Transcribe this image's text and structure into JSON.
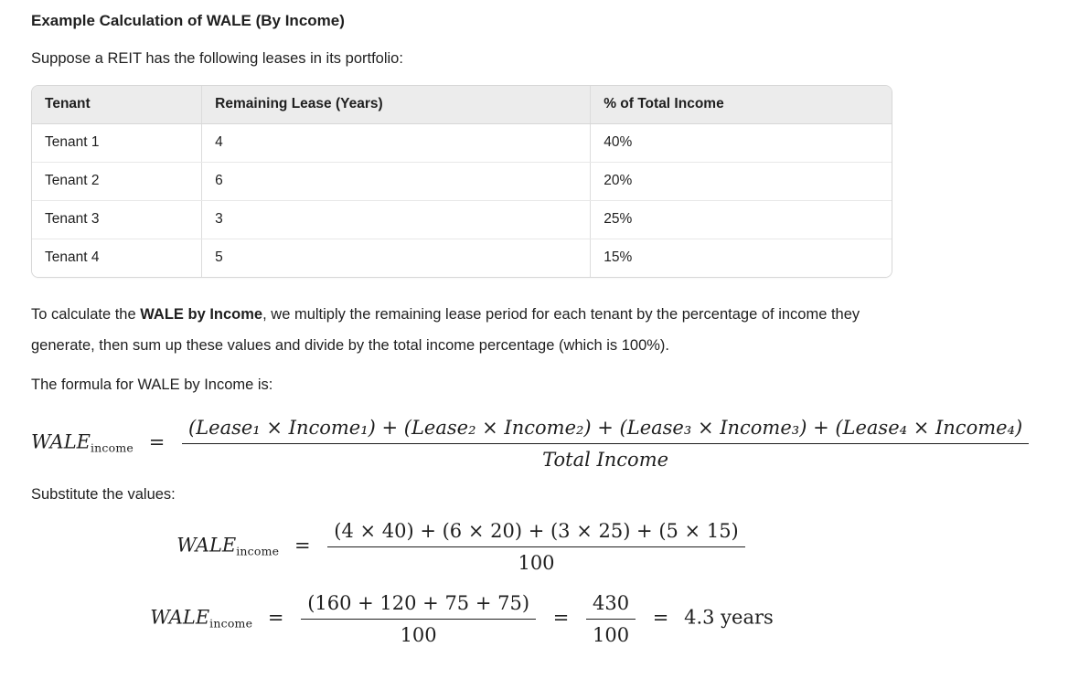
{
  "page": {
    "background": "#ffffff",
    "text_color": "#1f1f1f",
    "table_header_bg": "#ececec",
    "table_border_color": "#d7d7d7"
  },
  "heading": "Example Calculation of WALE (By Income)",
  "intro": "Suppose a REIT has the following leases in its portfolio:",
  "table": {
    "headers": [
      "Tenant",
      "Remaining Lease (Years)",
      "% of Total Income"
    ],
    "rows": [
      [
        "Tenant 1",
        "4",
        "40%"
      ],
      [
        "Tenant 2",
        "6",
        "20%"
      ],
      [
        "Tenant 3",
        "3",
        "25%"
      ],
      [
        "Tenant 4",
        "5",
        "15%"
      ]
    ]
  },
  "paragraph": {
    "prefix": "To calculate the ",
    "bold": "WALE by Income",
    "suffix": ", we multiply the remaining lease period for each tenant by the percentage of income they generate, then sum up these values and divide by the total income percentage (which is 100%)."
  },
  "formula_intro": "The formula for WALE by Income is:",
  "substitute_label": "Substitute the values:",
  "formulas": {
    "main": {
      "lhs": "WALE",
      "lhs_sub": "income",
      "eq": "=",
      "num": "(Lease₁ × Income₁) + (Lease₂ × Income₂) + (Lease₃ × Income₃) + (Lease₄ × Income₄)",
      "den": "Total Income"
    },
    "step1": {
      "lhs": "WALE",
      "lhs_sub": "income",
      "eq": "=",
      "num": "(4 × 40) + (6 × 20) + (3 × 25) + (5 × 15)",
      "den": "100"
    },
    "step2": {
      "lhs": "WALE",
      "lhs_sub": "income",
      "eq": "=",
      "num": "(160 + 120 + 75 + 75)",
      "den": "100",
      "eq2": "=",
      "num2": "430",
      "den2": "100",
      "eq3": "=",
      "result": "4.3 years"
    }
  }
}
